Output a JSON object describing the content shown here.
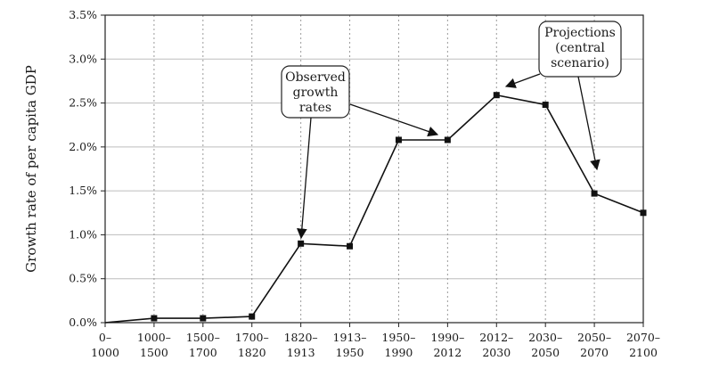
{
  "chart_data": {
    "type": "line",
    "categories": [
      [
        "0–",
        "1000"
      ],
      [
        "1000–",
        "1500"
      ],
      [
        "1500–",
        "1700"
      ],
      [
        "1700–",
        "1820"
      ],
      [
        "1820–",
        "1913"
      ],
      [
        "1913–",
        "1950"
      ],
      [
        "1950–",
        "1990"
      ],
      [
        "1990–",
        "2012"
      ],
      [
        "2012–",
        "2030"
      ],
      [
        "2030–",
        "2050"
      ],
      [
        "2050–",
        "2070"
      ],
      [
        "2070–",
        "2100"
      ]
    ],
    "values": [
      0.0,
      0.05,
      0.05,
      0.07,
      0.9,
      0.87,
      2.08,
      2.08,
      2.59,
      2.48,
      1.47,
      1.25
    ],
    "ylabel": "Growth rate of per capita GDP",
    "ylim": [
      0,
      3.5
    ],
    "yticks": [
      0,
      0.5,
      1.0,
      1.5,
      2.0,
      2.5,
      3.0,
      3.5
    ],
    "ytick_labels": [
      "0.0%",
      "0.5%",
      "1.0%",
      "1.5%",
      "2.0%",
      "2.5%",
      "3.0%",
      "3.5%"
    ],
    "grid": true,
    "annotations": [
      {
        "lines": [
          "Observed",
          "growth",
          "rates"
        ],
        "points_to": [
          4,
          7
        ]
      },
      {
        "lines": [
          "Projections",
          "(central",
          "scenario)"
        ],
        "points_to": [
          8,
          10
        ]
      }
    ]
  }
}
